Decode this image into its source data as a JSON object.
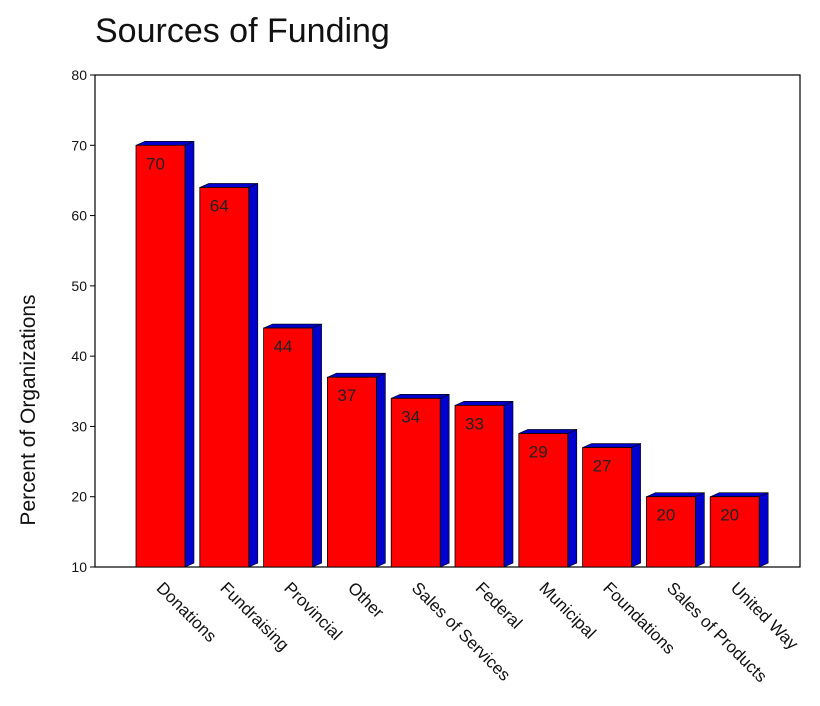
{
  "chart_data": {
    "type": "bar",
    "title": "Sources of Funding",
    "xlabel": "",
    "ylabel": "Percent of Organizations",
    "ylim": [
      10,
      80
    ],
    "yticks": [
      10,
      20,
      30,
      40,
      50,
      60,
      70,
      80
    ],
    "categories": [
      "Donations",
      "Fundraising",
      "Provincial",
      "Other",
      "Sales of Services",
      "Federal",
      "Municipal",
      "Foundations",
      "Sales of Products",
      "United Way"
    ],
    "values": [
      70,
      64,
      44,
      37,
      34,
      33,
      29,
      27,
      20,
      20
    ],
    "data_labels": [
      "70",
      "64",
      "44",
      "37",
      "34",
      "33",
      "29",
      "27",
      "20",
      "20"
    ],
    "style": "3d-bar",
    "grid": false,
    "legend": "none",
    "colors": {
      "bar_face": "#ff0000",
      "bar_side": "#0000cc",
      "bar_top": "#0000cc",
      "axis": "#000000"
    }
  }
}
